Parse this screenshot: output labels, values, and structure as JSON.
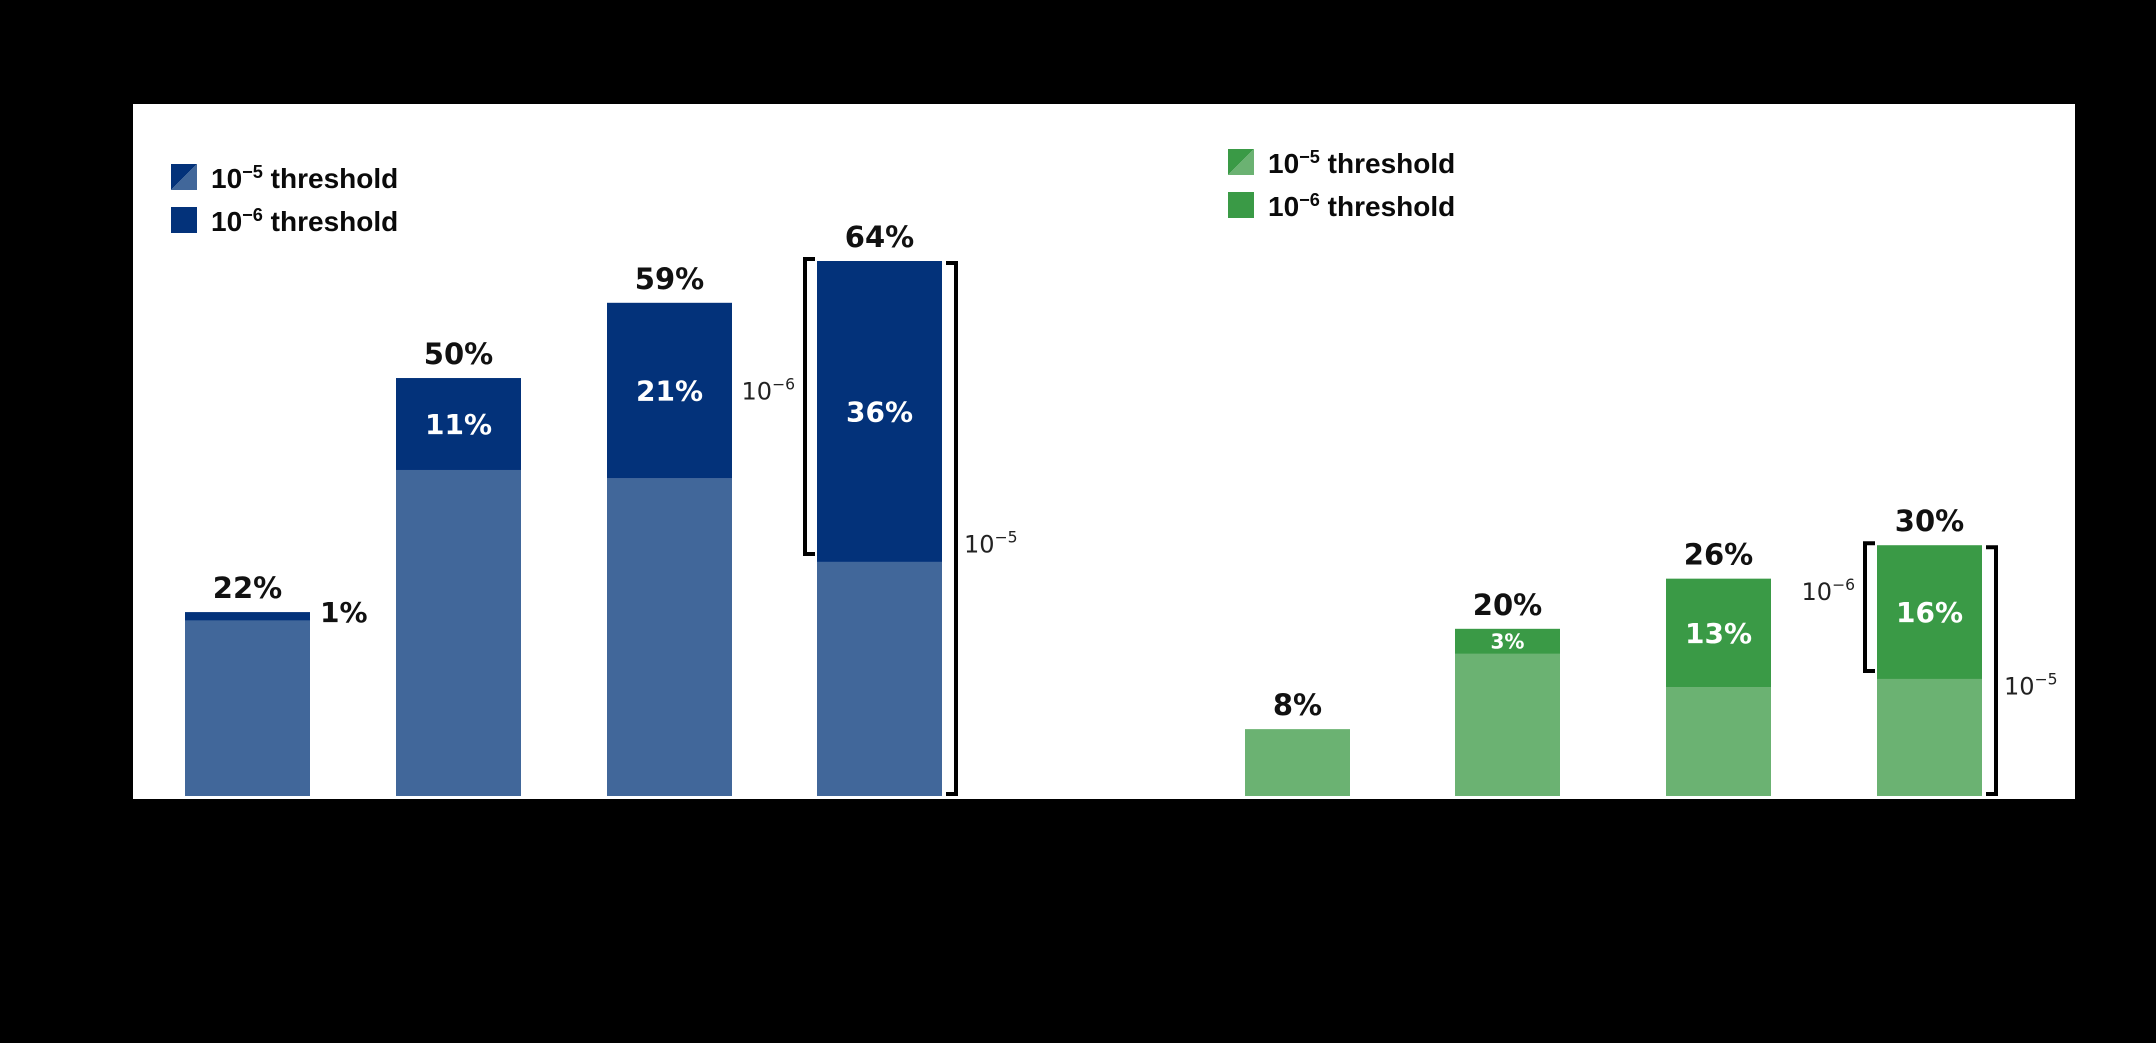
{
  "colors": {
    "blue_light": "#41679A",
    "blue_dark": "#03327A",
    "green_light": "#6BB272",
    "green_dark": "#3A9A46",
    "background": "#000000",
    "panel": "#FFFFFF"
  },
  "chart_data": [
    {
      "type": "bar",
      "stacked": true,
      "color_theme": "blue",
      "legend": {
        "position": "top-left",
        "items": [
          {
            "base": "10",
            "exp": "−5",
            "rest": " threshold",
            "style": "split-swatch"
          },
          {
            "base": "10",
            "exp": "−6",
            "rest": " threshold",
            "style": "solid-swatch"
          }
        ]
      },
      "series": [
        {
          "values": [
            21,
            39,
            38,
            28
          ]
        },
        {
          "values": [
            1,
            11,
            21,
            36
          ]
        }
      ],
      "totals": [
        "22%",
        "50%",
        "59%",
        "64%"
      ],
      "top_segment_labels": [
        "1%",
        "11%",
        "21%",
        "36%"
      ],
      "ylim": [
        0,
        64
      ],
      "brackets": [
        {
          "label_base": "10",
          "label_exp": "−6",
          "side": "left",
          "bar_index": 3,
          "span": "top-segment"
        },
        {
          "label_base": "10",
          "label_exp": "−5",
          "side": "right",
          "bar_index": 3,
          "span": "full-bar"
        }
      ]
    },
    {
      "type": "bar",
      "stacked": true,
      "color_theme": "green",
      "legend": {
        "position": "top-center",
        "items": [
          {
            "base": "10",
            "exp": "−5",
            "rest": " threshold",
            "style": "split-swatch"
          },
          {
            "base": "10",
            "exp": "−6",
            "rest": " threshold",
            "style": "solid-swatch"
          }
        ]
      },
      "series": [
        {
          "values": [
            8,
            17,
            13,
            14
          ]
        },
        {
          "values": [
            0,
            3,
            13,
            16
          ]
        }
      ],
      "totals": [
        "8%",
        "20%",
        "26%",
        "30%"
      ],
      "top_segment_labels": [
        "",
        "3%",
        "13%",
        "16%"
      ],
      "ylim": [
        0,
        64
      ],
      "brackets": [
        {
          "label_base": "10",
          "label_exp": "−6",
          "side": "left",
          "bar_index": 3,
          "span": "top-segment"
        },
        {
          "label_base": "10",
          "label_exp": "−5",
          "side": "right",
          "bar_index": 3,
          "span": "full-bar"
        }
      ]
    }
  ]
}
